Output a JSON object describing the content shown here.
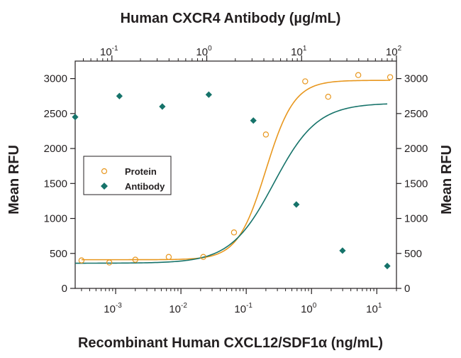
{
  "chart_data": {
    "type": "scatter",
    "top_title": "Human CXCR4 Antibody (µg/mL)",
    "xlabel": "Recombinant Human CXCL12/SDF1α (ng/mL)",
    "ylabel_left": "Mean RFU",
    "ylabel_right": "Mean RFU",
    "x_scale": "log",
    "x_bottom_range": [
      0.00024,
      20
    ],
    "x_bottom_ticks": [
      {
        "base": "10",
        "exp": "-3",
        "value": 0.001
      },
      {
        "base": "10",
        "exp": "-2",
        "value": 0.01
      },
      {
        "base": "10",
        "exp": "-1",
        "value": 0.1
      },
      {
        "base": "10",
        "exp": "0",
        "value": 1
      },
      {
        "base": "10",
        "exp": "1",
        "value": 10
      }
    ],
    "x_top_range": [
      0.041,
      100
    ],
    "x_top_ticks": [
      {
        "base": "10",
        "exp": "-1",
        "value": 0.1
      },
      {
        "base": "10",
        "exp": "0",
        "value": 1
      },
      {
        "base": "10",
        "exp": "1",
        "value": 10
      },
      {
        "base": "10",
        "exp": "2",
        "value": 100
      }
    ],
    "ylim": [
      0,
      3250
    ],
    "y_ticks": [
      0,
      500,
      1000,
      1500,
      2000,
      2500,
      3000
    ],
    "grid": false,
    "legend_position": "middle-left",
    "series": [
      {
        "name": "Protein",
        "marker": "open-circle",
        "color": "#e8971e",
        "axis": "bottom",
        "x": [
          0.0003,
          0.0008,
          0.002,
          0.0065,
          0.022,
          0.065,
          0.2,
          0.8,
          1.8,
          5.2,
          16
        ],
        "y": [
          400,
          370,
          410,
          450,
          450,
          800,
          2200,
          2960,
          2740,
          3050,
          3020
        ],
        "fit_curve": {
          "bottom": 410,
          "top": 2975,
          "ec50": 0.2,
          "hill": 2.0
        }
      },
      {
        "name": "Antibody",
        "marker": "filled-diamond",
        "color": "#16736a",
        "axis": "top",
        "x": [
          0.041,
          0.12,
          0.34,
          1.05,
          3.1,
          8.8,
          27,
          80
        ],
        "y": [
          2450,
          2750,
          2600,
          2770,
          2400,
          1200,
          540,
          320
        ],
        "fit_curve": {
          "bottom": 360,
          "top": 2650,
          "ec50": 5.1,
          "hill": 1.9
        }
      }
    ]
  }
}
